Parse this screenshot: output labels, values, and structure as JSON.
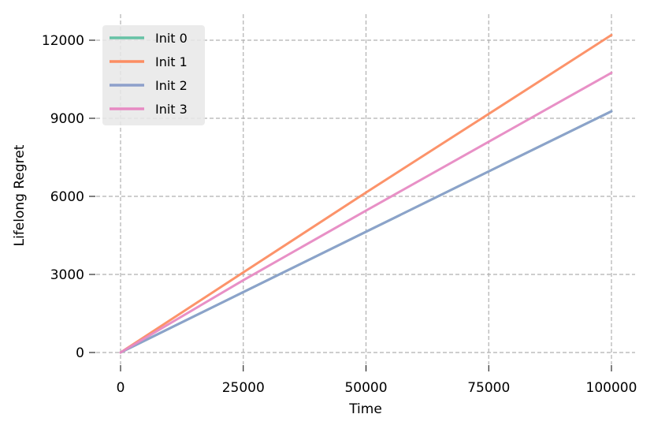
{
  "chart_data": {
    "type": "line",
    "title": "",
    "xlabel": "Time",
    "ylabel": "Lifelong Regret",
    "xlim": [
      0,
      100000
    ],
    "ylim": [
      0,
      12000
    ],
    "xticks": [
      0,
      25000,
      50000,
      75000,
      100000
    ],
    "yticks": [
      0,
      3000,
      6000,
      9000,
      12000
    ],
    "x_tick_labels": [
      "0",
      "25000",
      "50000",
      "75000",
      "100000"
    ],
    "y_tick_labels": [
      "0",
      "3000",
      "6000",
      "9000",
      "12000"
    ],
    "grid": true,
    "legend_position": "top-left",
    "x": [
      0,
      25000,
      50000,
      75000,
      100000
    ],
    "series": [
      {
        "name": "Init 0",
        "color": "#66c2a5",
        "values": [
          0,
          2320,
          4640,
          6960,
          9270
        ]
      },
      {
        "name": "Init 1",
        "color": "#fc8d62",
        "values": [
          0,
          3080,
          6150,
          9170,
          12200
        ]
      },
      {
        "name": "Init 2",
        "color": "#8da0cb",
        "values": [
          0,
          2320,
          4640,
          6960,
          9270
        ]
      },
      {
        "name": "Init 3",
        "color": "#e78ac3",
        "values": [
          0,
          2780,
          5450,
          8100,
          10750
        ]
      }
    ]
  }
}
